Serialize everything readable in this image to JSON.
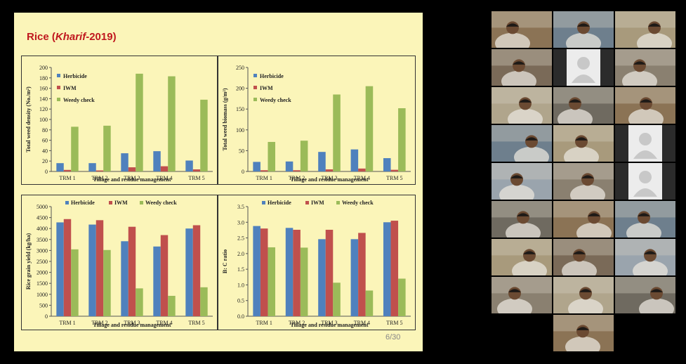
{
  "slide": {
    "title_plain": "Rice (",
    "title_italic": "Kharif",
    "title_tail": "-2019)",
    "page_number": "6/30"
  },
  "colors": {
    "herbicide": "#4f81bd",
    "iwm": "#c0504d",
    "weedy": "#9bbb59",
    "slide_bg": "#fbf5b9",
    "title": "#c0181f"
  },
  "chart_data": [
    {
      "type": "bar",
      "categories": [
        "TRM 1",
        "TRM 2",
        "TRM 3",
        "TRM 4",
        "TRM 5"
      ],
      "series": [
        {
          "name": "Herbicide",
          "values": [
            16,
            16,
            35,
            39,
            21
          ]
        },
        {
          "name": "IWM",
          "values": [
            3,
            2,
            8,
            10,
            4
          ]
        },
        {
          "name": "Weedy check",
          "values": [
            86,
            88,
            188,
            183,
            138
          ]
        }
      ],
      "ylabel": "Total weed density (No./m²)",
      "xlabel": "Tillage and residue management",
      "ylim": [
        0,
        200
      ],
      "yticks": [
        0,
        20,
        40,
        60,
        80,
        100,
        120,
        140,
        160,
        180,
        200
      ],
      "legend": "left-inside-vertical",
      "grid": false
    },
    {
      "type": "bar",
      "categories": [
        "TRM 1",
        "TRM 2",
        "TRM 3",
        "TRM 4",
        "TRM 5"
      ],
      "series": [
        {
          "name": "Herbicide",
          "values": [
            23,
            24,
            47,
            53,
            32
          ]
        },
        {
          "name": "IWM",
          "values": [
            3,
            3,
            5,
            7,
            4
          ]
        },
        {
          "name": "Weedy check",
          "values": [
            71,
            74,
            185,
            205,
            152
          ]
        }
      ],
      "ylabel": "Total weed biomass (g/m²)",
      "xlabel": "Tillage and residue management",
      "ylim": [
        0,
        250
      ],
      "yticks": [
        0,
        50,
        100,
        150,
        200,
        250
      ],
      "legend": "left-inside-vertical",
      "grid": false
    },
    {
      "type": "bar",
      "categories": [
        "TRM 1",
        "TRM 2",
        "TRM 3",
        "TRM 4",
        "TRM 5"
      ],
      "series": [
        {
          "name": "Herbicide",
          "values": [
            4280,
            4180,
            3420,
            3180,
            4000
          ]
        },
        {
          "name": "IWM",
          "values": [
            4430,
            4380,
            4080,
            3700,
            4150
          ]
        },
        {
          "name": "Weedy check",
          "values": [
            3050,
            3020,
            1270,
            930,
            1320
          ]
        }
      ],
      "ylabel": "Rice grain yield (kg/ha)",
      "xlabel": "Tillage and residue management",
      "ylim": [
        0,
        5000
      ],
      "yticks": [
        0,
        500,
        1000,
        1500,
        2000,
        2500,
        3000,
        3500,
        4000,
        4500,
        5000
      ],
      "legend": "top-horizontal",
      "grid": false
    },
    {
      "type": "bar",
      "categories": [
        "TRM 1",
        "TRM 2",
        "TRM 3",
        "TRM 4",
        "TRM 5"
      ],
      "series": [
        {
          "name": "Herbicide",
          "values": [
            2.88,
            2.82,
            2.46,
            2.46,
            3.0
          ]
        },
        {
          "name": "IWM",
          "values": [
            2.8,
            2.76,
            2.76,
            2.66,
            3.05
          ]
        },
        {
          "name": "Weedy check",
          "values": [
            2.2,
            2.19,
            1.07,
            0.82,
            1.2
          ]
        }
      ],
      "ylabel": "B: C ratio",
      "xlabel": "Tillage and residue management",
      "ylim": [
        0,
        3.5
      ],
      "yticks": [
        "0.0",
        "0.5",
        "1.0",
        "1.5",
        "2.0",
        "2.5",
        "3.0",
        "3.5"
      ],
      "legend": "top-horizontal",
      "grid": false
    }
  ],
  "participants": [
    {
      "id": "p1",
      "kind": "video"
    },
    {
      "id": "p2",
      "kind": "video"
    },
    {
      "id": "p3",
      "kind": "video"
    },
    {
      "id": "p4",
      "kind": "video"
    },
    {
      "id": "p5",
      "kind": "avatar"
    },
    {
      "id": "p6",
      "kind": "video"
    },
    {
      "id": "p7",
      "kind": "video"
    },
    {
      "id": "p8",
      "kind": "video"
    },
    {
      "id": "p9",
      "kind": "video"
    },
    {
      "id": "p10",
      "kind": "video"
    },
    {
      "id": "p11",
      "kind": "video"
    },
    {
      "id": "p12",
      "kind": "avatar"
    },
    {
      "id": "p13",
      "kind": "video"
    },
    {
      "id": "p14",
      "kind": "video"
    },
    {
      "id": "p15",
      "kind": "avatar"
    },
    {
      "id": "p16",
      "kind": "video"
    },
    {
      "id": "p17",
      "kind": "video"
    },
    {
      "id": "p18",
      "kind": "video"
    },
    {
      "id": "p19",
      "kind": "video"
    },
    {
      "id": "p20",
      "kind": "video"
    },
    {
      "id": "p21",
      "kind": "video"
    },
    {
      "id": "p22",
      "kind": "video"
    },
    {
      "id": "p23",
      "kind": "video"
    },
    {
      "id": "p24",
      "kind": "video"
    },
    {
      "id": "p25",
      "kind": "video"
    }
  ]
}
